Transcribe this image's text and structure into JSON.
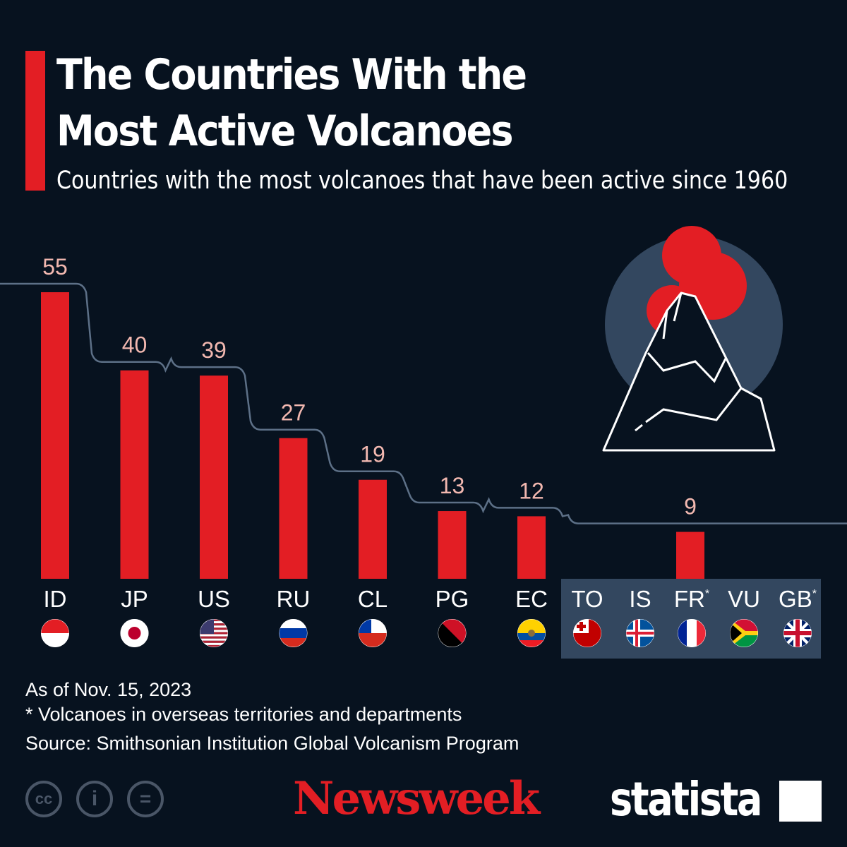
{
  "title_line1": "The Countries With the",
  "title_line2": "Most Active Volcanoes",
  "subtitle": "Countries with the most volcanoes that have been active since 1960",
  "colors": {
    "bar": "#e31e24",
    "label": "#f2b8b0",
    "line": "#5d7087",
    "group_box": "#33475f",
    "background": "#07121f"
  },
  "chart_data": {
    "type": "bar",
    "title": "The Countries With the Most Active Volcanoes",
    "subtitle": "Countries with the most volcanoes that have been active since 1960",
    "categories": [
      "ID",
      "JP",
      "US",
      "RU",
      "CL",
      "PG",
      "EC"
    ],
    "values": [
      55,
      40,
      39,
      27,
      19,
      13,
      12
    ],
    "group": {
      "categories": [
        "TO",
        "IS",
        "FR",
        "VU",
        "GB"
      ],
      "asterisk": [
        false,
        false,
        true,
        false,
        true
      ],
      "value": 9
    },
    "ylim": [
      0,
      55
    ],
    "grid": false,
    "flag_icons": [
      "indonesia-flag",
      "japan-flag",
      "usa-flag",
      "russia-flag",
      "chile-flag",
      "papua-new-guinea-flag",
      "ecuador-flag",
      "tonga-flag",
      "iceland-flag",
      "france-flag",
      "vanuatu-flag",
      "uk-flag"
    ]
  },
  "notes": {
    "date": "As of Nov. 15, 2023",
    "footnote": "* Volcanoes in overseas territories and departments",
    "source": "Source: Smithsonian Institution Global Volcanism Program"
  },
  "logos": {
    "newsweek": "Newsweek",
    "statista": "statista",
    "cc": "cc"
  }
}
